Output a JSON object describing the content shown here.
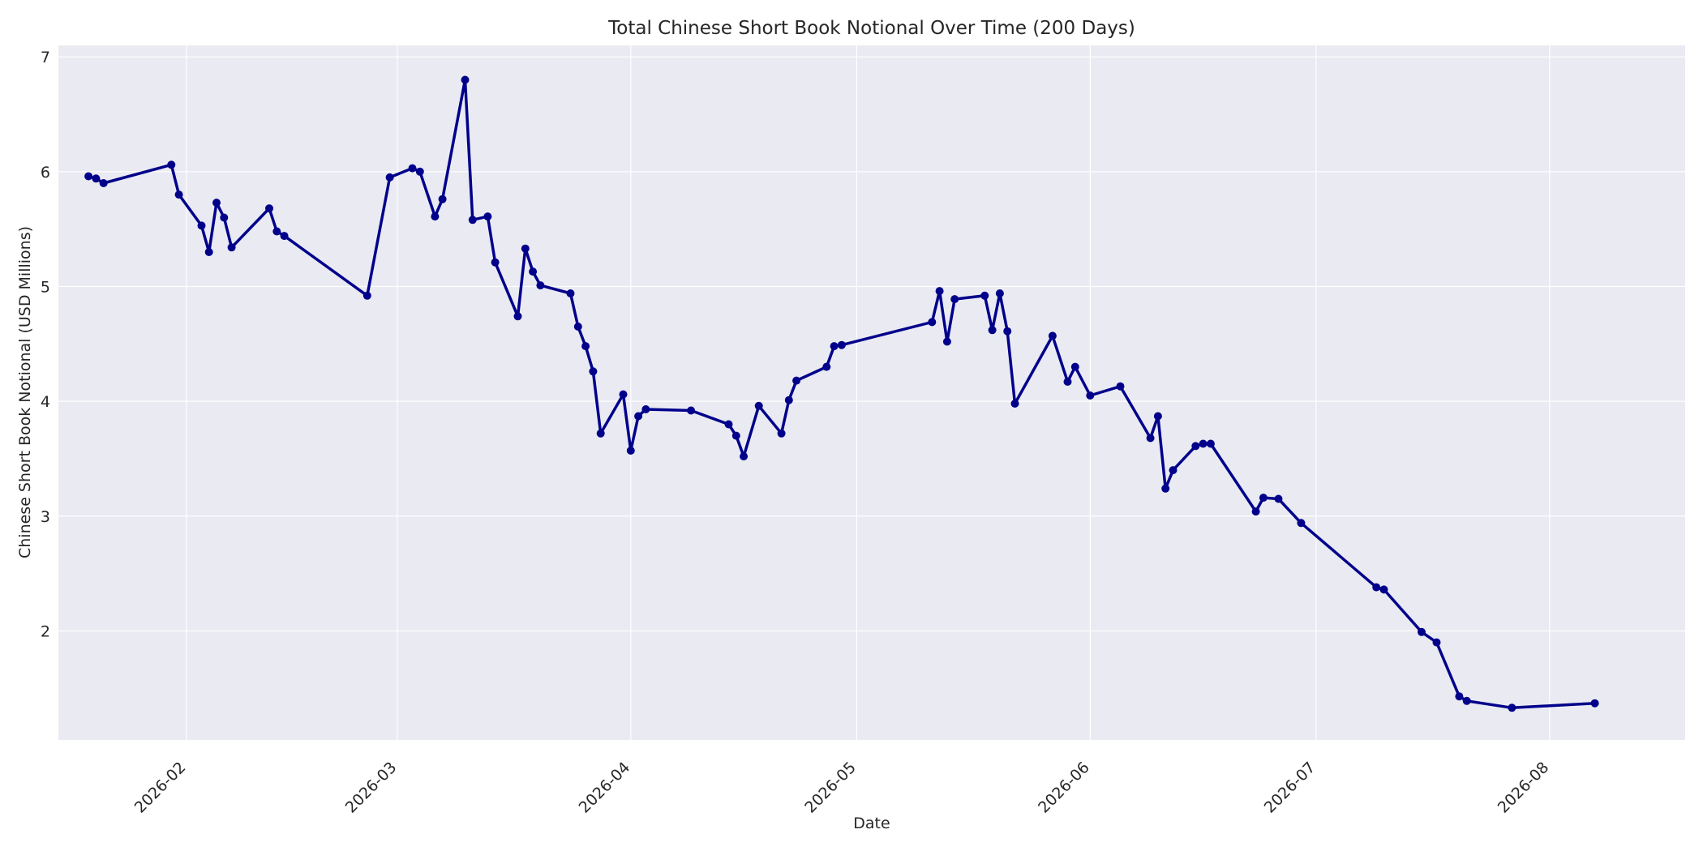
{
  "chart_data": {
    "type": "line",
    "title": "Total Chinese Short Book Notional Over Time (200 Days)",
    "xlabel": "Date",
    "ylabel": "Chinese Short Book Notional (USD Millions)",
    "x_ticks": [
      "2026-02",
      "2026-03",
      "2026-04",
      "2026-05",
      "2026-06",
      "2026-07",
      "2026-08"
    ],
    "y_ticks": [
      2,
      3,
      4,
      5,
      6,
      7
    ],
    "xlim": [
      "2026-01-15",
      "2026-08-19"
    ],
    "ylim": [
      1.05,
      7.1
    ],
    "grid": true,
    "line_color": "#00008b",
    "background_color": "#eaeaf2",
    "series": [
      {
        "dates": [
          "2026-01-19",
          "2026-01-20",
          "2026-01-21",
          "2026-01-30",
          "2026-01-31",
          "2026-02-03",
          "2026-02-04",
          "2026-02-05",
          "2026-02-06",
          "2026-02-07",
          "2026-02-12",
          "2026-02-13",
          "2026-02-14",
          "2026-02-25",
          "2026-02-28",
          "2026-03-03",
          "2026-03-04",
          "2026-03-06",
          "2026-03-07",
          "2026-03-10",
          "2026-03-11",
          "2026-03-13",
          "2026-03-14",
          "2026-03-17",
          "2026-03-18",
          "2026-03-19",
          "2026-03-20",
          "2026-03-24",
          "2026-03-25",
          "2026-03-26",
          "2026-03-27",
          "2026-03-28",
          "2026-03-31",
          "2026-04-01",
          "2026-04-02",
          "2026-04-03",
          "2026-04-09",
          "2026-04-14",
          "2026-04-15",
          "2026-04-16",
          "2026-04-18",
          "2026-04-21",
          "2026-04-22",
          "2026-04-23",
          "2026-04-27",
          "2026-04-28",
          "2026-04-29",
          "2026-05-11",
          "2026-05-12",
          "2026-05-13",
          "2026-05-14",
          "2026-05-18",
          "2026-05-19",
          "2026-05-20",
          "2026-05-21",
          "2026-05-22",
          "2026-05-27",
          "2026-05-29",
          "2026-05-30",
          "2026-06-01",
          "2026-06-05",
          "2026-06-09",
          "2026-06-10",
          "2026-06-11",
          "2026-06-12",
          "2026-06-15",
          "2026-06-16",
          "2026-06-17",
          "2026-06-23",
          "2026-06-24",
          "2026-06-26",
          "2026-06-29",
          "2026-07-09",
          "2026-07-10",
          "2026-07-15",
          "2026-07-17",
          "2026-07-20",
          "2026-07-21",
          "2026-07-27",
          "2026-08-07"
        ],
        "values": [
          5.96,
          5.94,
          5.9,
          6.06,
          5.8,
          5.53,
          5.3,
          5.73,
          5.6,
          5.34,
          5.68,
          5.48,
          5.44,
          4.92,
          5.95,
          6.03,
          6.0,
          5.61,
          5.76,
          6.8,
          5.58,
          5.61,
          5.21,
          4.74,
          5.33,
          5.13,
          5.01,
          4.94,
          4.65,
          4.48,
          4.26,
          3.72,
          4.06,
          3.57,
          3.87,
          3.93,
          3.92,
          3.8,
          3.7,
          3.52,
          3.96,
          3.72,
          4.01,
          4.18,
          4.3,
          4.48,
          4.49,
          4.69,
          4.96,
          4.52,
          4.89,
          4.92,
          4.62,
          4.94,
          4.61,
          3.98,
          4.57,
          4.17,
          4.3,
          4.05,
          4.13,
          3.68,
          3.87,
          3.24,
          3.4,
          3.61,
          3.63,
          3.63,
          3.04,
          3.16,
          3.15,
          2.94,
          2.38,
          2.36,
          1.99,
          1.9,
          1.43,
          1.39,
          1.33,
          1.37
        ]
      }
    ]
  }
}
